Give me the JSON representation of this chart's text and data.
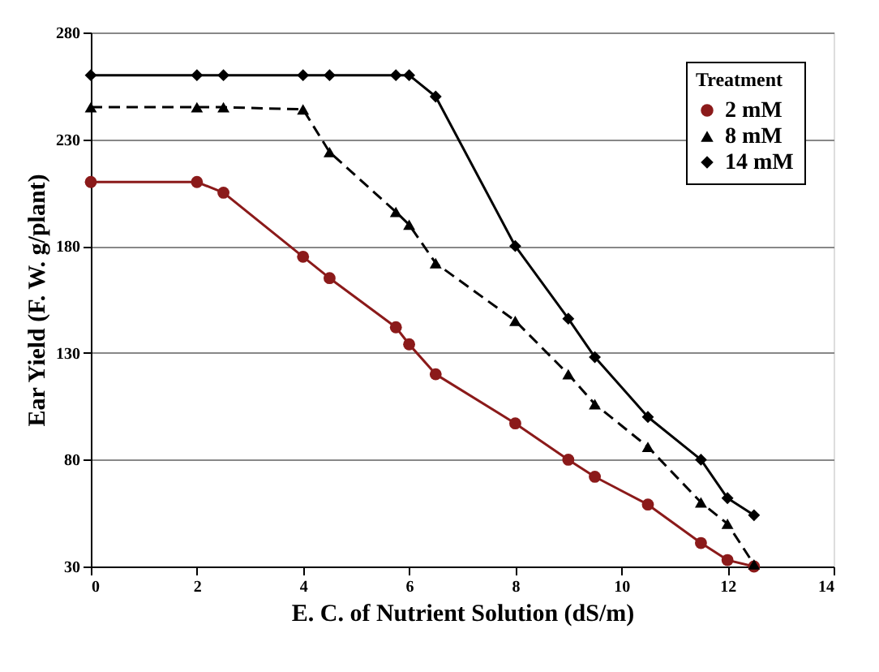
{
  "chart_data": {
    "type": "line",
    "xlabel": "E. C. of  Nutrient Solution (dS/m)",
    "ylabel": "Ear Yield (F. W. g/plant)",
    "legend_title": "Treatment",
    "xlim": [
      0,
      14
    ],
    "xticks": [
      0,
      2,
      4,
      6,
      8,
      10,
      12,
      14
    ],
    "ylim": [
      30,
      280
    ],
    "yticks": [
      30,
      80,
      130,
      180,
      230,
      280
    ],
    "grid": "y",
    "legend": "top right",
    "series": [
      {
        "name": "2 mM",
        "color": "#8b1a1a",
        "marker": "circle",
        "line_style": "solid",
        "x": [
          0,
          2,
          2.5,
          4,
          4.5,
          5.75,
          6,
          6.5,
          8,
          9,
          9.5,
          10.5,
          11.5,
          12,
          12.5
        ],
        "values": [
          210,
          210,
          205,
          175,
          165,
          142,
          134,
          120,
          97,
          80,
          72,
          59,
          41,
          33,
          30
        ]
      },
      {
        "name": "8 mM",
        "color": "#000000",
        "marker": "triangle",
        "line_style": "dashed",
        "x": [
          0,
          2,
          2.5,
          4,
          4.5,
          5.75,
          6,
          6.5,
          8,
          9,
          9.5,
          10.5,
          11.5,
          12,
          12.5
        ],
        "values": [
          245,
          245,
          245,
          244,
          224,
          196,
          190,
          172,
          145,
          120,
          106,
          86,
          60,
          50,
          31
        ]
      },
      {
        "name": "14 mM",
        "color": "#000000",
        "marker": "diamond",
        "line_style": "solid",
        "x": [
          0,
          2,
          2.5,
          4,
          4.5,
          5.75,
          6,
          6.5,
          8,
          9,
          9.5,
          10.5,
          11.5,
          12,
          12.5
        ],
        "values": [
          260,
          260,
          260,
          260,
          260,
          260,
          260,
          250,
          180,
          146,
          128,
          100,
          80,
          62,
          54
        ]
      }
    ]
  }
}
